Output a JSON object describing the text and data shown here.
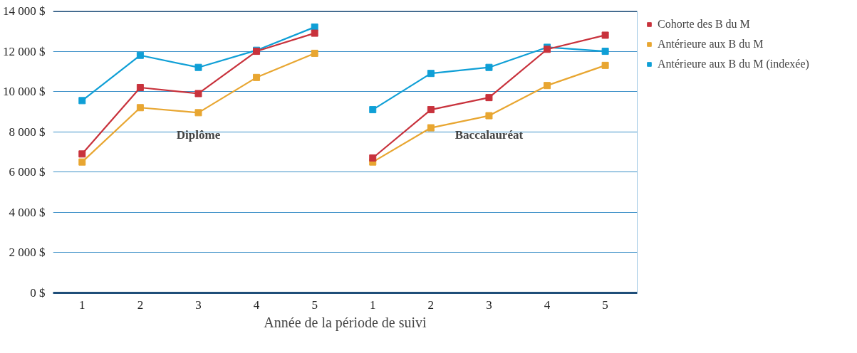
{
  "chart_data": {
    "type": "line",
    "xlabel": "Année de la période de suivi",
    "categories": [
      "1",
      "2",
      "3",
      "4",
      "5",
      "1",
      "2",
      "3",
      "4",
      "5"
    ],
    "series": [
      {
        "name": "Cohorte des B du M",
        "color": "#c8323c",
        "values": [
          6900,
          10200,
          9900,
          12000,
          12900,
          null,
          null,
          null,
          null,
          null
        ]
      },
      {
        "name": "Antérieure aux B du M",
        "color": "#e8a631",
        "values": [
          6500,
          9200,
          8950,
          10700,
          11900,
          null,
          null,
          null,
          null,
          null
        ]
      },
      {
        "name": "Antérieure aux B du M (indexée)",
        "color": "#0f9fd6",
        "values": [
          9550,
          11800,
          11200,
          12050,
          13200,
          null,
          null,
          null,
          null,
          null
        ]
      },
      {
        "color": "#c8323c",
        "values": [
          null,
          null,
          null,
          null,
          null,
          6700,
          9100,
          9700,
          12100,
          12800
        ]
      },
      {
        "color": "#e8a631",
        "values": [
          null,
          null,
          null,
          null,
          null,
          6500,
          8200,
          8800,
          10300,
          11300
        ]
      },
      {
        "color": "#0f9fd6",
        "values": [
          null,
          null,
          null,
          null,
          null,
          9100,
          10900,
          11200,
          12200,
          12000
        ]
      }
    ],
    "annotations": [
      "Diplôme",
      "Baccalauréat"
    ],
    "ylim": [
      0,
      14000
    ],
    "yticks": [
      {
        "value": 0,
        "label": "0 $"
      },
      {
        "value": 2000,
        "label": "2 000 $"
      },
      {
        "value": 4000,
        "label": "4 000 $"
      },
      {
        "value": 6000,
        "label": "6 000 $"
      },
      {
        "value": 8000,
        "label": "8 000 $"
      },
      {
        "value": 10000,
        "label": "10 000 $"
      },
      {
        "value": 12000,
        "label": "12 000 $"
      },
      {
        "value": 14000,
        "label": "14 000 $"
      }
    ],
    "grid": "y",
    "legend": "right",
    "marker": "square",
    "line_style": "solid"
  }
}
